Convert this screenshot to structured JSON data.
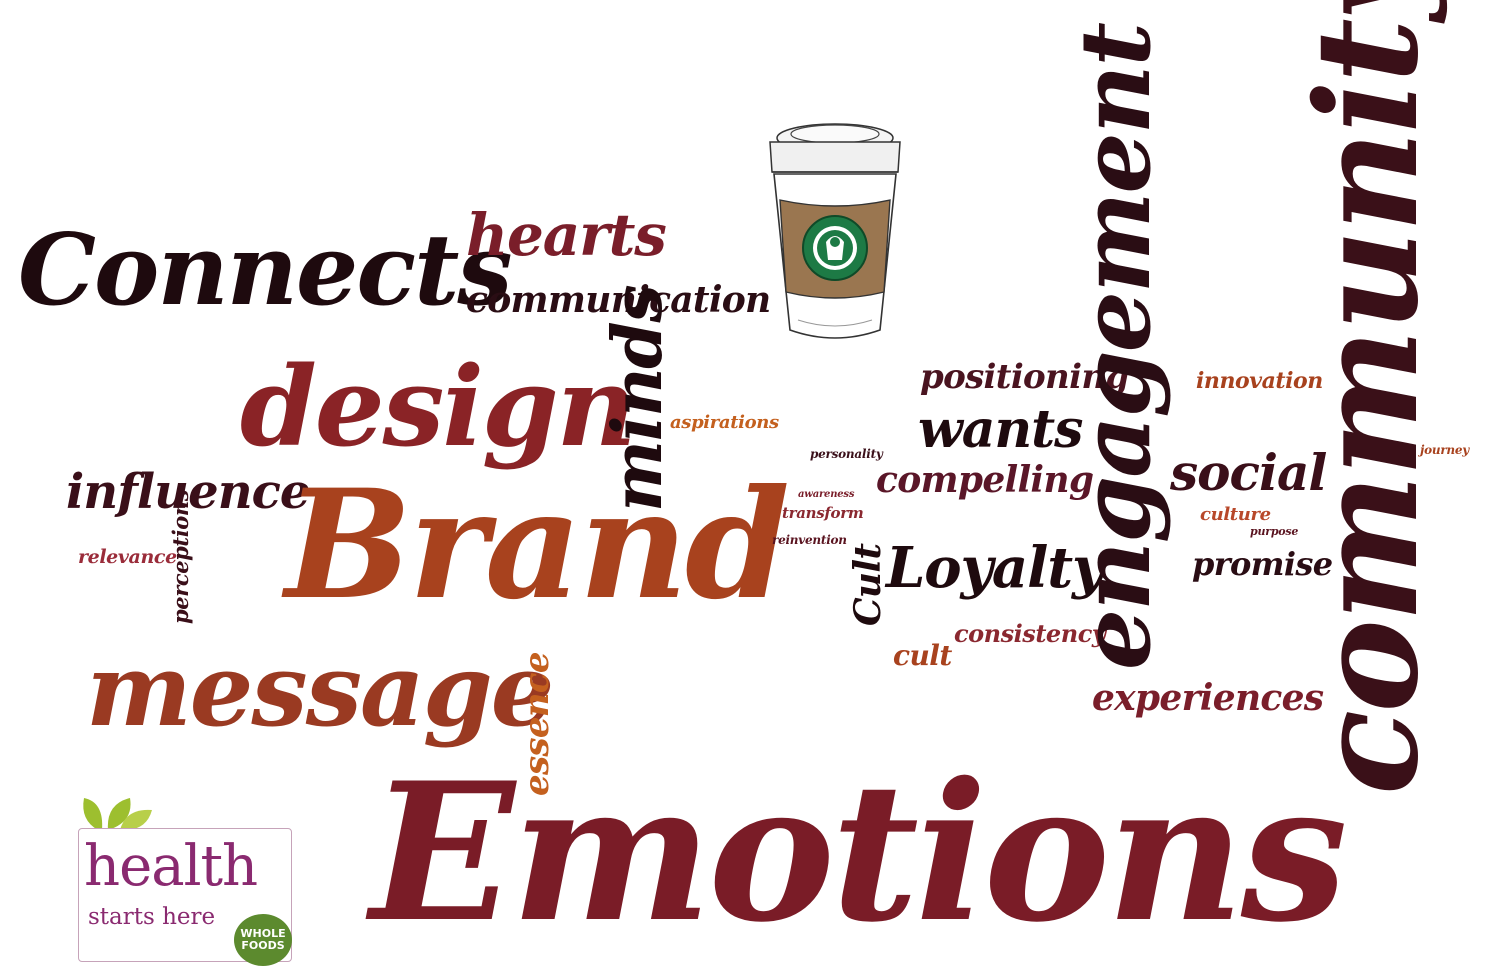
{
  "words": {
    "brand": "Brand",
    "emotions": "Emotions",
    "community": "community",
    "engagement": "engagement",
    "connects": "Connects",
    "design": "design",
    "message": "message",
    "hearts": "hearts",
    "communication": "communication",
    "minds": "minds",
    "influence": "influence",
    "loyalty": "Loyalty",
    "wants": "wants",
    "social": "social",
    "positioning": "positioning",
    "compelling": "compelling",
    "experiences": "experiences",
    "promise": "promise",
    "innovation": "innovation",
    "consistency": "consistency",
    "cult_upper": "Cult",
    "cult_lower": "cult",
    "essence": "essence",
    "aspirations": "aspirations",
    "perceptions": "perceptions",
    "relevance": "relevance",
    "culture": "culture",
    "purpose": "purpose",
    "journey": "journey",
    "personality": "personality",
    "awareness": "awareness",
    "transform": "transform",
    "reinvention": "reinvention"
  },
  "logo": {
    "health": "health",
    "starts_here": "starts here",
    "brand_badge": "WHOLE FOODS"
  },
  "images": {
    "cup_icon": "starbucks-coffee-cup-icon",
    "logo_icon": "health-starts-here-logo"
  },
  "colors": {
    "dark": "#2a0d14",
    "maroon": "#6e1a28",
    "burgundy": "#7a1e2a",
    "rust": "#a83a1f",
    "rust_light": "#a8421e",
    "orange": "#c4601e",
    "leaf_green": "#9dbf2f",
    "starbucks_green": "#1d7a45"
  }
}
